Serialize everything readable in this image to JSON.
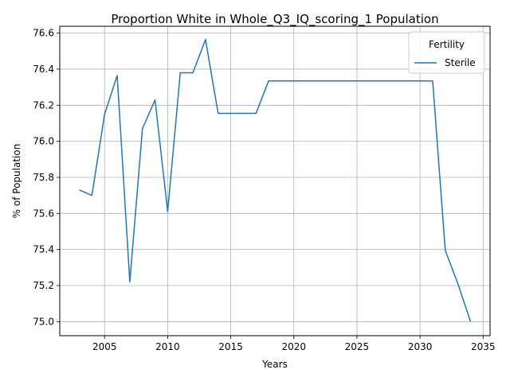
{
  "chart_data": {
    "type": "line",
    "title": "Proportion White in Whole_Q3_IQ_scoring_1 Population",
    "xlabel": "Years",
    "ylabel": "% of Population",
    "xlim": [
      2001.45,
      2035.55
    ],
    "ylim": [
      74.922,
      76.638
    ],
    "xticks": [
      2005,
      2010,
      2015,
      2020,
      2025,
      2030,
      2035
    ],
    "yticks": [
      75.0,
      75.2,
      75.4,
      75.6,
      75.8,
      76.0,
      76.2,
      76.4,
      76.6
    ],
    "xtick_labels": [
      "2005",
      "2010",
      "2015",
      "2020",
      "2025",
      "2030",
      "2035"
    ],
    "ytick_labels": [
      "75.0",
      "75.2",
      "75.4",
      "75.6",
      "75.8",
      "76.0",
      "76.2",
      "76.4",
      "76.6"
    ],
    "grid": true,
    "legend": {
      "title": "Fertility",
      "placement": "top-right",
      "entries": [
        "Sterile"
      ]
    },
    "series": [
      {
        "name": "Sterile",
        "color": "#1f77b4",
        "x": [
          2003,
          2004,
          2005,
          2006,
          2007,
          2008,
          2009,
          2010,
          2011,
          2012,
          2013,
          2014,
          2015,
          2016,
          2017,
          2018,
          2019,
          2020,
          2021,
          2022,
          2023,
          2024,
          2025,
          2026,
          2027,
          2028,
          2029,
          2030,
          2031,
          2032,
          2033,
          2034
        ],
        "y": [
          75.73,
          75.7,
          76.15,
          76.365,
          75.22,
          76.07,
          76.23,
          75.61,
          76.38,
          76.38,
          76.565,
          76.155,
          76.155,
          76.155,
          76.155,
          76.335,
          76.335,
          76.335,
          76.335,
          76.335,
          76.335,
          76.335,
          76.335,
          76.335,
          76.335,
          76.335,
          76.335,
          76.335,
          76.335,
          75.395,
          75.21,
          75.0
        ]
      }
    ]
  }
}
